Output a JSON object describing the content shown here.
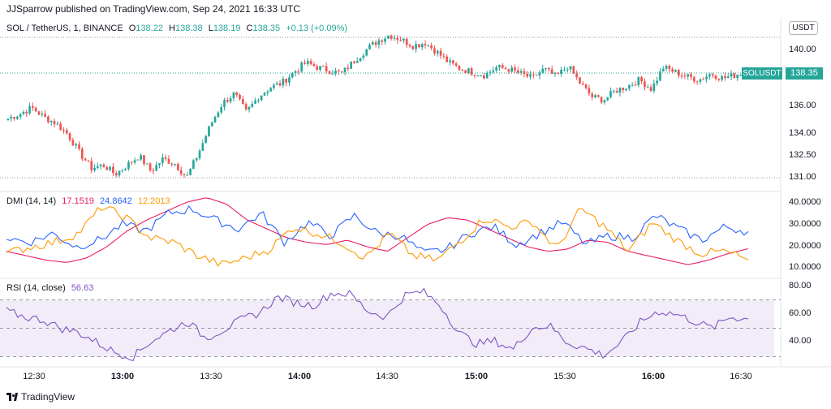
{
  "header": {
    "publisher": "JJSparrow published on TradingView.com, Sep 24, 2021 16:33 UTC"
  },
  "price_legend": {
    "symbol": "SOL / TetherUS, 1, BINANCE",
    "o_label": "O",
    "o": "138.22",
    "h_label": "H",
    "h": "138.38",
    "l_label": "L",
    "l": "138.19",
    "c_label": "C",
    "c": "138.35",
    "change": "+0.13 (+0.09%)"
  },
  "dmi_legend": {
    "label": "DMI (14, 14)",
    "v1": "17.1519",
    "v2": "24.8642",
    "v3": "12.2013"
  },
  "rsi_legend": {
    "label": "RSI (14, close)",
    "v": "56.63"
  },
  "currency_badge": "USDT",
  "last_price_tag": "138.35",
  "symbol_tag": "SOLUSDT",
  "footer": {
    "brand": "TradingView"
  },
  "colors": {
    "up": "#26a69a",
    "down": "#ef5350",
    "adx": "#e91e63",
    "plus_di": "#2962ff",
    "minus_di": "#ff9800",
    "rsi": "#7e57c2",
    "rsi_band": "#ede7f6"
  },
  "chart_data": [
    {
      "type": "candlestick",
      "title": "SOL / TetherUS, 1, BINANCE",
      "y_ticks": [
        "140.00",
        "138.00",
        "136.00",
        "134.00",
        "132.50",
        "131.00"
      ],
      "ylim": [
        130.7,
        141.7
      ],
      "x_ticks": [
        "12:30",
        "13:00",
        "13:30",
        "14:00",
        "14:30",
        "15:00",
        "15:30",
        "16:00",
        "16:30"
      ],
      "close_path": [
        135.2,
        135.5,
        135.9,
        135.3,
        134.9,
        134.2,
        133.0,
        132.0,
        132.2,
        131.6,
        132.2,
        132.8,
        131.8,
        132.6,
        132.3,
        131.4,
        133.0,
        134.8,
        136.2,
        136.8,
        135.6,
        136.6,
        137.2,
        137.5,
        138.2,
        138.8,
        138.5,
        138.3,
        138.1,
        138.9,
        139.6,
        140.2,
        140.6,
        140.3,
        139.9,
        140.1,
        139.5,
        138.8,
        138.4,
        138.2,
        138.0,
        138.5,
        138.4,
        138.1,
        137.8,
        138.4,
        137.9,
        138.6,
        137.5,
        136.6,
        136.4,
        137.0,
        137.3,
        137.7,
        137.1,
        138.5,
        138.2,
        137.9,
        137.7,
        138.1,
        137.8,
        138.0,
        138.35
      ],
      "last_price": 138.35
    },
    {
      "type": "line",
      "title": "DMI (14, 14)",
      "y_ticks": [
        "40.0000",
        "30.0000",
        "20.0000",
        "10.0000"
      ],
      "ylim": [
        5,
        42
      ],
      "series": [
        {
          "name": "ADX",
          "values": [
            16,
            14,
            12,
            11,
            13,
            18,
            25,
            30,
            34,
            38,
            40,
            37,
            30,
            26,
            22,
            20,
            19,
            21,
            18,
            16,
            22,
            28,
            31,
            30,
            26,
            22,
            18,
            16,
            17,
            21,
            20,
            16,
            14,
            12,
            10,
            12,
            15,
            17.15
          ]
        },
        {
          "name": "+DI",
          "values": [
            22,
            20,
            24,
            18,
            21,
            28,
            25,
            33,
            35,
            30,
            26,
            33,
            20,
            29,
            23,
            32,
            24,
            23,
            15,
            17,
            24,
            27,
            19,
            24,
            29,
            19,
            23,
            22,
            32,
            26,
            21,
            27,
            24.86
          ]
        },
        {
          "name": "-DI",
          "values": [
            15,
            18,
            20,
            24,
            36,
            31,
            22,
            20,
            14,
            10,
            13,
            17,
            27,
            24,
            20,
            13,
            24,
            14,
            12,
            21,
            31,
            27,
            29,
            17,
            35,
            27,
            16,
            29,
            21,
            15,
            16,
            12.2
          ]
        }
      ]
    },
    {
      "type": "line",
      "title": "RSI (14, close)",
      "y_ticks": [
        "80.00",
        "60.00",
        "40.00"
      ],
      "ylim": [
        24,
        84
      ],
      "bands": [
        70,
        50,
        30
      ],
      "series": [
        {
          "name": "RSI",
          "values": [
            62,
            58,
            56,
            50,
            47,
            40,
            33,
            30,
            41,
            48,
            55,
            43,
            49,
            56,
            61,
            72,
            68,
            66,
            75,
            74,
            62,
            58,
            73,
            76,
            66,
            47,
            39,
            41,
            35,
            50,
            52,
            40,
            36,
            31,
            40,
            54,
            62,
            60,
            55,
            50,
            58,
            56.63
          ]
        }
      ]
    }
  ]
}
